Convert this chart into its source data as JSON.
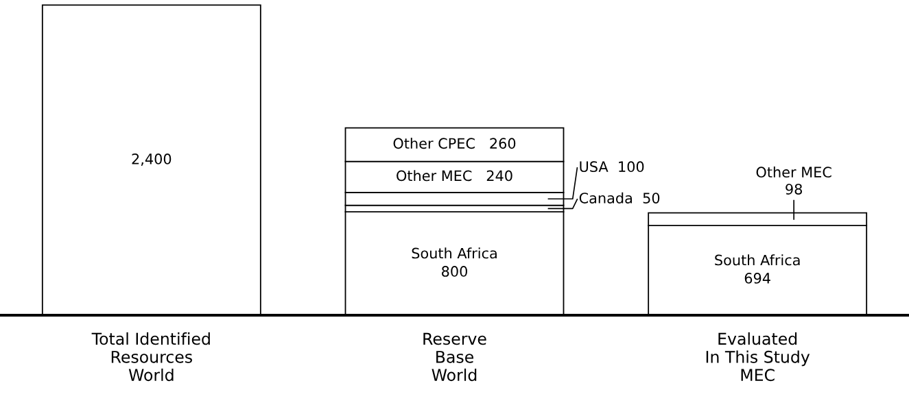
{
  "chart_data": {
    "type": "bar",
    "stacked": true,
    "legend": false,
    "grid": false,
    "categories": [
      "Total Identified\nResources\nWorld",
      "Reserve\nBase\nWorld",
      "Evaluated\nIn This Study\nMEC"
    ],
    "series": [
      {
        "color": "#ffffff",
        "values": [
          2400,
          null,
          null
        ],
        "value_labels": [
          "2,400",
          null,
          null
        ]
      },
      {
        "name": "South Africa",
        "color": "#ffffff",
        "values": [
          null,
          800,
          694
        ],
        "value_labels": [
          null,
          "800",
          "694"
        ]
      },
      {
        "name": "Canada",
        "color": "#ffffff",
        "values": [
          null,
          50,
          null
        ],
        "value_labels": [
          null,
          "50",
          null
        ]
      },
      {
        "name": "USA",
        "color": "#ffffff",
        "values": [
          null,
          100,
          null
        ],
        "value_labels": [
          null,
          "100",
          null
        ]
      },
      {
        "name": "Other MEC",
        "color": "#ffffff",
        "values": [
          null,
          240,
          98
        ],
        "value_labels": [
          null,
          "240",
          "98"
        ]
      },
      {
        "name": "Other CPEC",
        "color": "#ffffff",
        "values": [
          null,
          260,
          null
        ],
        "value_labels": [
          null,
          "260",
          null
        ]
      }
    ]
  }
}
